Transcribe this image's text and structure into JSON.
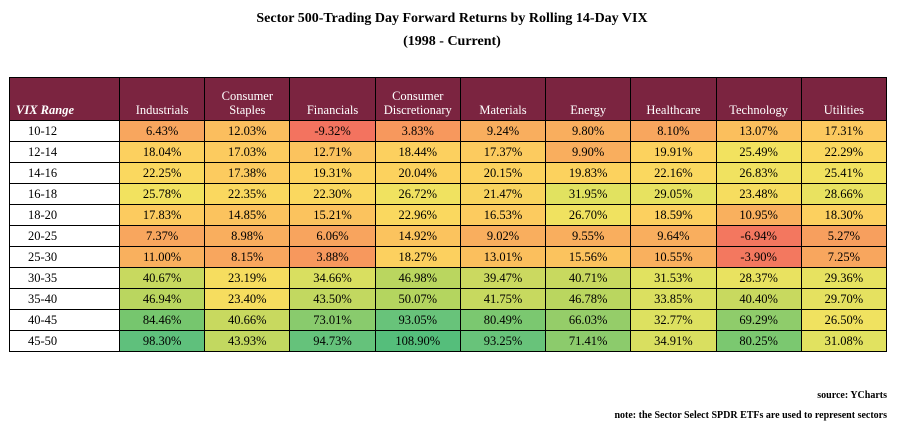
{
  "title": "Sector 500-Trading Day Forward Returns by Rolling 14-Day VIX",
  "subtitle": "(1998 - Current)",
  "table": {
    "corner": "VIX Range",
    "columns": [
      {
        "line1": "",
        "line2": "Industrials"
      },
      {
        "line1": "Consumer",
        "line2": "Staples"
      },
      {
        "line1": "",
        "line2": "Financials"
      },
      {
        "line1": "Consumer",
        "line2": "Discretionary"
      },
      {
        "line1": "",
        "line2": "Materials"
      },
      {
        "line1": "",
        "line2": "Energy"
      },
      {
        "line1": "",
        "line2": "Healthcare"
      },
      {
        "line1": "",
        "line2": "Technology"
      },
      {
        "line1": "",
        "line2": "Utilities"
      }
    ],
    "rows": [
      {
        "range": "10-12",
        "values": [
          "6.43%",
          "12.03%",
          "-9.32%",
          "3.83%",
          "9.24%",
          "9.80%",
          "8.10%",
          "13.07%",
          "17.31%"
        ],
        "colors": [
          "#f8a65e",
          "#fbbe5e",
          "#f3735f",
          "#f7985d",
          "#f9ae5e",
          "#f9ae5e",
          "#f8a65e",
          "#fbbf5d",
          "#fcc95f"
        ]
      },
      {
        "range": "12-14",
        "values": [
          "18.04%",
          "17.03%",
          "12.71%",
          "18.44%",
          "17.37%",
          "9.90%",
          "19.91%",
          "25.49%",
          "22.29%"
        ],
        "colors": [
          "#fcd05f",
          "#fccb5f",
          "#fbc35e",
          "#fcd05f",
          "#fccb5f",
          "#f9ae5e",
          "#fcd25e",
          "#f2e25f",
          "#fad85f"
        ]
      },
      {
        "range": "14-16",
        "values": [
          "22.25%",
          "17.38%",
          "19.31%",
          "20.04%",
          "20.15%",
          "19.83%",
          "22.16%",
          "26.83%",
          "25.41%"
        ],
        "colors": [
          "#fad85f",
          "#fccb5f",
          "#fcd25e",
          "#fcd25e",
          "#fcd25e",
          "#fcd25e",
          "#fad85f",
          "#f0e260",
          "#f2e25f"
        ]
      },
      {
        "range": "16-18",
        "values": [
          "25.78%",
          "22.35%",
          "22.30%",
          "26.72%",
          "21.47%",
          "31.95%",
          "29.05%",
          "23.48%",
          "28.66%"
        ],
        "colors": [
          "#f2e25f",
          "#fad85f",
          "#fad85f",
          "#f0e260",
          "#f9d45e",
          "#e1e260",
          "#e7e260",
          "#f6dd5f",
          "#e9e260"
        ]
      },
      {
        "range": "18-20",
        "values": [
          "17.83%",
          "14.85%",
          "15.21%",
          "22.96%",
          "16.53%",
          "26.70%",
          "18.59%",
          "10.95%",
          "18.30%"
        ],
        "colors": [
          "#fccb5f",
          "#fbc35e",
          "#fbc35e",
          "#fad85f",
          "#fccb5f",
          "#f0e260",
          "#fcd05f",
          "#f9b05e",
          "#fcd05f"
        ]
      },
      {
        "range": "20-25",
        "values": [
          "7.37%",
          "8.98%",
          "6.06%",
          "14.92%",
          "9.02%",
          "9.55%",
          "9.64%",
          "-6.94%",
          "5.27%"
        ],
        "colors": [
          "#f8a65e",
          "#f9ae5e",
          "#f8a45e",
          "#fbc35e",
          "#f9ae5e",
          "#f9ae5e",
          "#f9ae5e",
          "#f3775f",
          "#f79f5e"
        ]
      },
      {
        "range": "25-30",
        "values": [
          "11.00%",
          "8.15%",
          "3.88%",
          "18.27%",
          "13.01%",
          "15.56%",
          "10.55%",
          "-3.90%",
          "7.25%"
        ],
        "colors": [
          "#f9b05e",
          "#f8a65e",
          "#f7985d",
          "#fcd05f",
          "#fbbf5d",
          "#fbc35e",
          "#f9b05e",
          "#f3785f",
          "#f8a65e"
        ]
      },
      {
        "range": "30-35",
        "values": [
          "40.67%",
          "23.19%",
          "34.66%",
          "46.98%",
          "39.47%",
          "40.71%",
          "31.53%",
          "28.37%",
          "29.36%"
        ],
        "colors": [
          "#c8d95f",
          "#f6dd5f",
          "#d9df60",
          "#bad65f",
          "#cbd960",
          "#c8d95f",
          "#e1e260",
          "#e9e260",
          "#e7e260"
        ]
      },
      {
        "range": "35-40",
        "values": [
          "46.94%",
          "23.40%",
          "43.50%",
          "50.07%",
          "41.75%",
          "46.78%",
          "33.85%",
          "40.40%",
          "29.70%"
        ],
        "colors": [
          "#bad65f",
          "#f6dd5f",
          "#c2d860",
          "#b4d55f",
          "#c7d95f",
          "#bad65f",
          "#dbe060",
          "#c8d95f",
          "#e5e160"
        ]
      },
      {
        "range": "40-45",
        "values": [
          "84.46%",
          "40.66%",
          "73.01%",
          "93.05%",
          "80.49%",
          "66.03%",
          "32.77%",
          "69.29%",
          "26.50%"
        ],
        "colors": [
          "#76c66e",
          "#c8d95f",
          "#89cb6d",
          "#68c37a",
          "#7bc870",
          "#95cd69",
          "#dde160",
          "#8fcc6b",
          "#f0e260"
        ]
      },
      {
        "range": "45-50",
        "values": [
          "98.30%",
          "43.93%",
          "94.73%",
          "108.90%",
          "93.25%",
          "71.41%",
          "34.91%",
          "80.25%",
          "31.08%"
        ],
        "colors": [
          "#5fc07c",
          "#c2d860",
          "#65c27b",
          "#55be7b",
          "#68c37a",
          "#8ccb6c",
          "#d9df60",
          "#7bc870",
          "#e1e260"
        ]
      }
    ]
  },
  "source": "source: YCharts",
  "note": "note: the Sector Select SPDR ETFs are used to represent sectors"
}
